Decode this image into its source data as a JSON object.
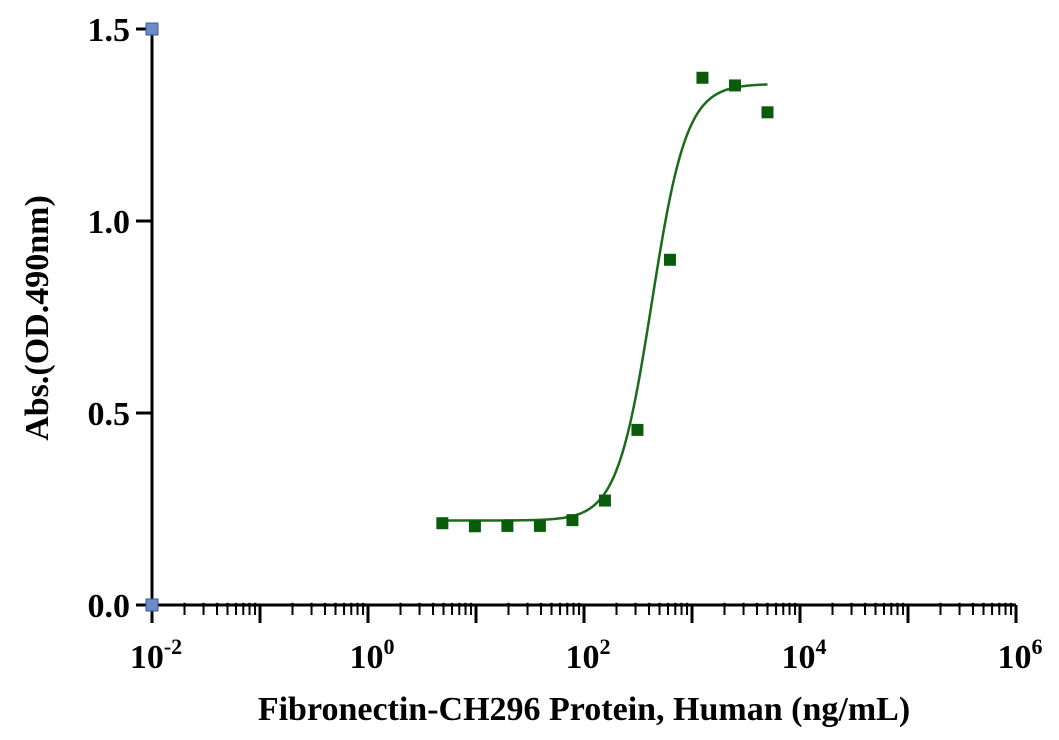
{
  "chart_data": {
    "type": "scatter",
    "xlabel": "Fibronectin-CH296 Protein, Human (ng/mL)",
    "ylabel": "Abs.(OD.490nm)",
    "x_scale": "log10",
    "xlim": [
      0.01,
      1000000
    ],
    "ylim": [
      0,
      1.5
    ],
    "x_ticks": [
      {
        "base": "10",
        "exp": "-2",
        "value": 0.01
      },
      {
        "base": "10",
        "exp": "0",
        "value": 1
      },
      {
        "base": "10",
        "exp": "2",
        "value": 100
      },
      {
        "base": "10",
        "exp": "4",
        "value": 10000
      },
      {
        "base": "10",
        "exp": "6",
        "value": 1000000
      }
    ],
    "y_ticks": [
      {
        "label": "0.0",
        "value": 0
      },
      {
        "label": "0.5",
        "value": 0.5
      },
      {
        "label": "1.0",
        "value": 1.0
      },
      {
        "label": "1.5",
        "value": 1.5
      }
    ],
    "grid": false,
    "colors": {
      "series": "#0a5c0a",
      "curve": "#1a6b1a",
      "axis_marker": "#6b8cc4"
    },
    "series": [
      {
        "x": [
          4.88,
          9.77,
          19.53,
          39.06,
          78.13,
          156.25,
          312.5,
          625,
          1250,
          2500,
          5000
        ],
        "y": [
          0.213,
          0.205,
          0.206,
          0.206,
          0.221,
          0.272,
          0.456,
          0.899,
          1.373,
          1.353,
          1.283
        ]
      }
    ],
    "fit_curve": {
      "model": "4PL",
      "x_range": [
        4.88,
        5000
      ],
      "bottom": 0.22,
      "top": 1.357,
      "ec50": 425,
      "hill": 2.7
    }
  }
}
